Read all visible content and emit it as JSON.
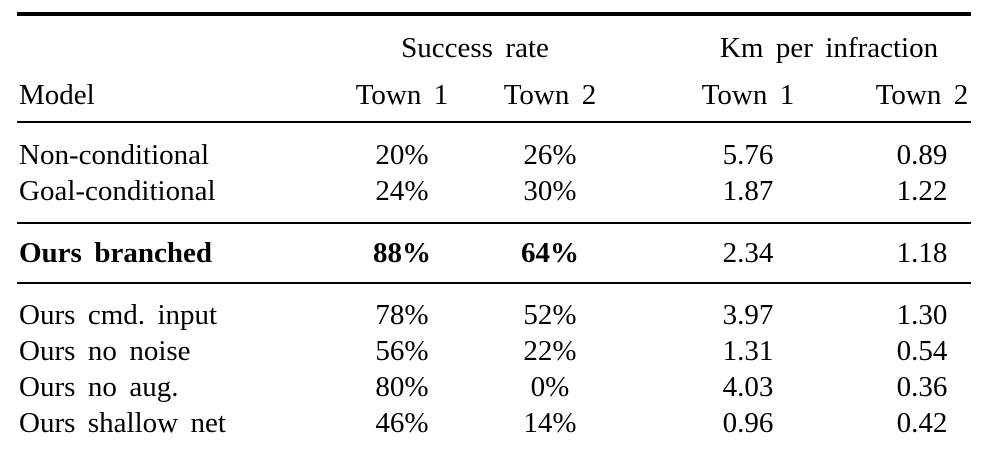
{
  "table": {
    "group_headers": {
      "success": "Success rate",
      "km": "Km per infraction"
    },
    "column_headers": {
      "model": "Model",
      "sr_t1": "Town 1",
      "sr_t2": "Town 2",
      "km_t1": "Town 1",
      "km_t2": "Town 2"
    },
    "rows": [
      {
        "model": "Non-conditional",
        "sr_t1": "20%",
        "sr_t2": "26%",
        "km_t1": "5.76",
        "km_t2": "0.89",
        "emphasized": false
      },
      {
        "model": "Goal-conditional",
        "sr_t1": "24%",
        "sr_t2": "30%",
        "km_t1": "1.87",
        "km_t2": "1.22",
        "emphasized": false
      },
      {
        "model": "Ours branched",
        "sr_t1": "88%",
        "sr_t2": "64%",
        "km_t1": "2.34",
        "km_t2": "1.18",
        "emphasized": true
      },
      {
        "model": "Ours cmd. input",
        "sr_t1": "78%",
        "sr_t2": "52%",
        "km_t1": "3.97",
        "km_t2": "1.30",
        "emphasized": false
      },
      {
        "model": "Ours no noise",
        "sr_t1": "56%",
        "sr_t2": "22%",
        "km_t1": "1.31",
        "km_t2": "0.54",
        "emphasized": false
      },
      {
        "model": "Ours no aug.",
        "sr_t1": "80%",
        "sr_t2": "0%",
        "km_t1": "4.03",
        "km_t2": "0.36",
        "emphasized": false
      },
      {
        "model": "Ours shallow net",
        "sr_t1": "46%",
        "sr_t2": "14%",
        "km_t1": "0.96",
        "km_t2": "0.42",
        "emphasized": false
      }
    ],
    "colors": {
      "text": "#000000",
      "background": "#ffffff",
      "rule": "#000000"
    }
  }
}
